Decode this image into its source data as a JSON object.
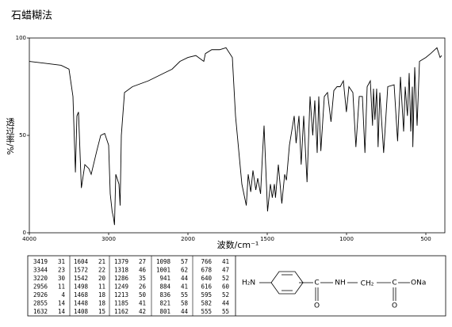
{
  "chart_data": {
    "type": "line",
    "title": "石蜡糊法",
    "x_label": "波数/cm⁻¹",
    "y_label": "透过率/%",
    "xlim": [
      4000,
      400
    ],
    "ylim": [
      0,
      100
    ],
    "xticks": [
      4000,
      3000,
      2000,
      1500,
      1000,
      500
    ],
    "yticks": [
      0,
      50,
      100
    ],
    "x": [
      4000,
      3800,
      3600,
      3500,
      3450,
      3419,
      3400,
      3380,
      3344,
      3300,
      3250,
      3220,
      3150,
      3100,
      3050,
      3000,
      2980,
      2956,
      2940,
      2926,
      2910,
      2870,
      2855,
      2840,
      2800,
      2700,
      2500,
      2300,
      2200,
      2100,
      2000,
      1950,
      1900,
      1890,
      1850,
      1800,
      1760,
      1720,
      1700,
      1660,
      1632,
      1620,
      1604,
      1590,
      1572,
      1560,
      1542,
      1530,
      1520,
      1498,
      1480,
      1468,
      1455,
      1448,
      1430,
      1408,
      1390,
      1379,
      1360,
      1330,
      1318,
      1300,
      1286,
      1270,
      1249,
      1230,
      1213,
      1200,
      1185,
      1175,
      1162,
      1140,
      1120,
      1098,
      1080,
      1060,
      1040,
      1020,
      1001,
      985,
      960,
      941,
      920,
      900,
      884,
      870,
      850,
      836,
      830,
      821,
      810,
      801,
      790,
      766,
      740,
      700,
      678,
      660,
      640,
      630,
      616,
      605,
      595,
      585,
      582,
      570,
      555,
      540,
      500,
      470,
      430,
      410,
      400
    ],
    "series": [
      {
        "color": "#000000",
        "values": [
          88,
          87,
          86,
          84,
          70,
          31,
          60,
          62,
          23,
          35,
          33,
          30,
          42,
          50,
          51,
          45,
          20,
          11,
          8,
          4,
          30,
          25,
          14,
          50,
          72,
          75,
          78,
          82,
          84,
          88,
          90,
          91,
          88,
          92,
          94,
          94,
          95,
          90,
          60,
          25,
          14,
          30,
          21,
          32,
          22,
          28,
          20,
          40,
          55,
          11,
          25,
          18,
          25,
          18,
          35,
          15,
          30,
          27,
          45,
          60,
          46,
          60,
          35,
          60,
          26,
          70,
          50,
          68,
          41,
          70,
          42,
          70,
          72,
          57,
          73,
          75,
          75,
          78,
          62,
          75,
          72,
          44,
          70,
          70,
          41,
          75,
          78,
          55,
          74,
          58,
          74,
          44,
          72,
          41,
          75,
          76,
          47,
          80,
          52,
          75,
          60,
          82,
          52,
          75,
          44,
          85,
          55,
          88,
          90,
          92,
          95,
          90,
          91
        ]
      }
    ]
  },
  "peak_table": {
    "rows": [
      [
        3419,
        31,
        1604,
        21,
        1379,
        27,
        1098,
        57,
        766,
        41
      ],
      [
        3344,
        23,
        1572,
        22,
        1318,
        46,
        1001,
        62,
        678,
        47
      ],
      [
        3220,
        30,
        1542,
        20,
        1286,
        35,
        941,
        44,
        640,
        52
      ],
      [
        2956,
        11,
        1498,
        11,
        1249,
        26,
        884,
        41,
        616,
        60
      ],
      [
        2926,
        4,
        1468,
        18,
        1213,
        50,
        836,
        55,
        595,
        52
      ],
      [
        2855,
        14,
        1448,
        18,
        1185,
        41,
        821,
        58,
        582,
        44
      ],
      [
        1632,
        14,
        1408,
        15,
        1162,
        42,
        801,
        44,
        555,
        55
      ]
    ]
  },
  "structure": {
    "amine": "H₂N",
    "carbonyl_c1": "C",
    "carbonyl_o1": "O",
    "amide_n": "NH",
    "methylene": "CH₂",
    "carbonyl_c2": "C",
    "carbonyl_o2": "O",
    "salt": "ONa"
  }
}
